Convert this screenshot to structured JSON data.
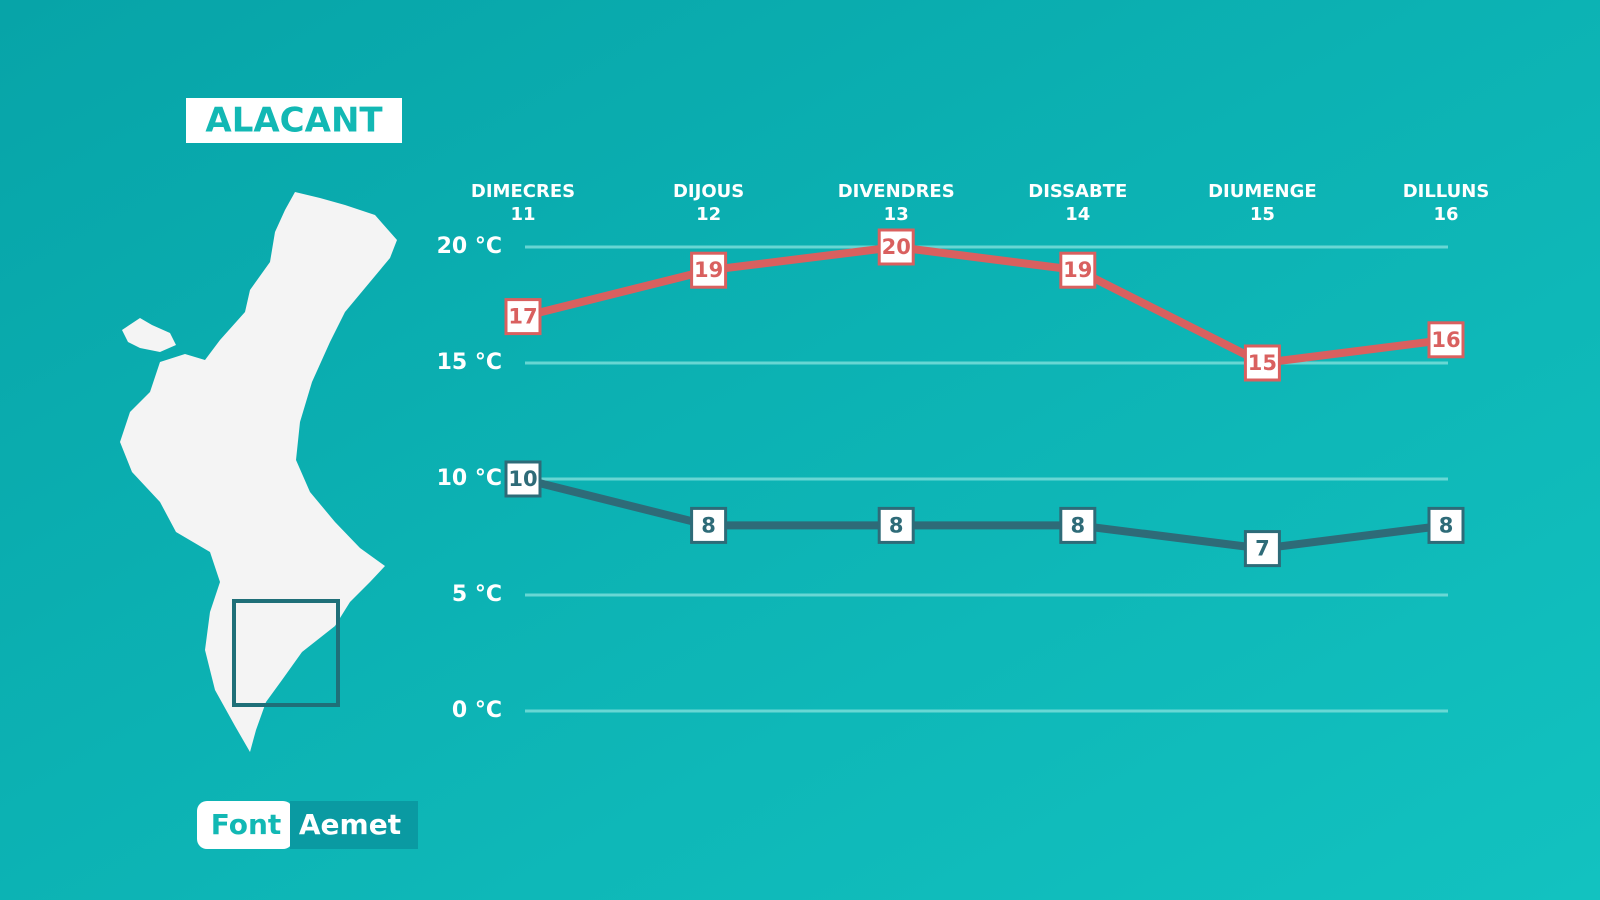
{
  "chart_data": {
    "type": "line",
    "title": "ALACANT",
    "categories": [
      "DIMECRES",
      "DIJOUS",
      "DIVENDRES",
      "DISSABTE",
      "DIUMENGE",
      "DILLUNS"
    ],
    "day_numbers": [
      11,
      12,
      13,
      14,
      15,
      16
    ],
    "series": [
      {
        "color": "#d9605f",
        "values": [
          17,
          19,
          20,
          19,
          15,
          16
        ]
      },
      {
        "color": "#2e6b78",
        "values": [
          10,
          8,
          8,
          8,
          7,
          8
        ]
      }
    ],
    "ylim": [
      0,
      20
    ],
    "yticks": [
      {
        "value": 0,
        "label": "0 °C"
      },
      {
        "value": 5,
        "label": "5 °C"
      },
      {
        "value": 10,
        "label": "10 °C"
      },
      {
        "value": 15,
        "label": "15 °C"
      },
      {
        "value": 20,
        "label": "20 °C"
      }
    ],
    "grid": true,
    "source": {
      "label": "Font",
      "name": "Aemet"
    }
  }
}
